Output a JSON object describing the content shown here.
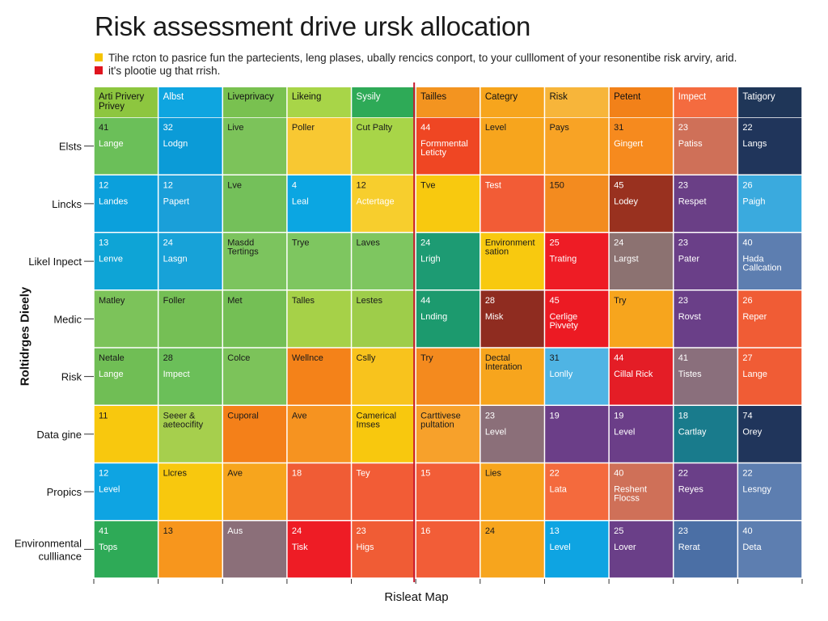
{
  "title": "Risk assessment drive ursk allocation",
  "legend": [
    {
      "color": "#f5c400",
      "text": "Tihe rcton to pasrice fun the partecients, leng plases, ubally rencics conport, to your cullloment of your resonentibe risk arviry, arid."
    },
    {
      "color": "#e0141e",
      "text": "it's plootie ug that rrish."
    }
  ],
  "chart_data": {
    "type": "heatmap",
    "xlabel": "Risleat Map",
    "ylabel": "Roltidrges Dieely",
    "columns": [
      "Arti Privery Privey",
      "Albst",
      "Liveprivacy",
      "Likeing",
      "Sysily",
      "Tailles",
      "Categry",
      "Risk",
      "Petent",
      "Impect",
      "Tatigory"
    ],
    "header_colors": [
      "#8dc63f",
      "#0ea5e0",
      "#79c150",
      "#a8d548",
      "#2eaa57",
      "#f39420",
      "#f7a51d",
      "#f7b53a",
      "#f28119",
      "#f46b3f",
      "#1f3658"
    ],
    "rows": [
      "Elsts",
      "Lincks",
      "Likel Inpect",
      "Medic",
      "Risk",
      "Data gine",
      "Propics",
      "Environmental cullliance"
    ],
    "divider_after_column": 4,
    "cells": [
      [
        {
          "t": "41",
          "s": "Lange",
          "c": "#6bbf59"
        },
        {
          "t": "32",
          "s": "Lodgn",
          "c": "#0b9bd7"
        },
        {
          "t": "Live",
          "s": "",
          "c": "#7cc35a"
        },
        {
          "t": "Poller",
          "s": "",
          "c": "#f8c832"
        },
        {
          "t": "Cut Palty",
          "s": "",
          "c": "#a8d548"
        },
        {
          "t": "44",
          "s": "Formmental Leticty",
          "c": "#ef4623"
        },
        {
          "t": "Level",
          "s": "",
          "c": "#f7a51d"
        },
        {
          "t": "Pays",
          "s": "",
          "c": "#f8a325"
        },
        {
          "t": "31",
          "s": "Gingert",
          "c": "#f68a1e"
        },
        {
          "t": "23",
          "s": "Patiss",
          "c": "#cf7058"
        },
        {
          "t": "22",
          "s": "Langs",
          "c": "#20355b"
        }
      ],
      [
        {
          "t": "12",
          "s": "Landes",
          "c": "#0ba0dc"
        },
        {
          "t": "12",
          "s": "Papert",
          "c": "#1a9fd9"
        },
        {
          "t": "Lve",
          "s": "",
          "c": "#74c05a"
        },
        {
          "t": "4",
          "s": "Leal",
          "c": "#0ba6e2"
        },
        {
          "t": "12",
          "s": "Actertage",
          "c": "#f7ce2d"
        },
        {
          "t": "Tve",
          "s": "",
          "c": "#f8c90f"
        },
        {
          "t": "Test",
          "s": "",
          "c": "#f25c36"
        },
        {
          "t": "150",
          "s": "",
          "c": "#f38b1f"
        },
        {
          "t": "45",
          "s": "Lodey",
          "c": "#99311f"
        },
        {
          "t": "23",
          "s": "Respet",
          "c": "#6a3f86"
        },
        {
          "t": "26",
          "s": "Paigh",
          "c": "#3aaade"
        }
      ],
      [
        {
          "t": "13",
          "s": "Lenve",
          "c": "#0ea4d6"
        },
        {
          "t": "24",
          "s": "Lasgn",
          "c": "#17a2d8"
        },
        {
          "t": "Masdd Tertings",
          "s": "",
          "c": "#7cc45e"
        },
        {
          "t": "Trye",
          "s": "",
          "c": "#7ec660"
        },
        {
          "t": "Laves",
          "s": "",
          "c": "#7ec660"
        },
        {
          "t": "24",
          "s": "Lrigh",
          "c": "#1d9b73"
        },
        {
          "t": "Environment sation",
          "s": "",
          "c": "#f8c90f"
        },
        {
          "t": "25",
          "s": "Trating",
          "c": "#ee1c25"
        },
        {
          "t": "24",
          "s": "Largst",
          "c": "#8c7271"
        },
        {
          "t": "23",
          "s": "Pater",
          "c": "#6a3f88"
        },
        {
          "t": "40",
          "s": "Hada Callcation",
          "c": "#5d7eb0"
        }
      ],
      [
        {
          "t": "Matley",
          "s": "",
          "c": "#7cc35a"
        },
        {
          "t": "Foller",
          "s": "",
          "c": "#75bf55"
        },
        {
          "t": "Met",
          "s": "",
          "c": "#74bf55"
        },
        {
          "t": "Talles",
          "s": "",
          "c": "#a6d148"
        },
        {
          "t": "Lestes",
          "s": "",
          "c": "#9ecd4a"
        },
        {
          "t": "44",
          "s": "Lnding",
          "c": "#1c9a6e"
        },
        {
          "t": "28",
          "s": "Misk",
          "c": "#8f2c20"
        },
        {
          "t": "45",
          "s": "Cerlige Pivvety",
          "c": "#ec1a23"
        },
        {
          "t": "Try",
          "s": "",
          "c": "#f7a51d"
        },
        {
          "t": "23",
          "s": "Rovst",
          "c": "#6a3f88"
        },
        {
          "t": "26",
          "s": "Reper",
          "c": "#f05c35"
        }
      ],
      [
        {
          "t": "Netale",
          "s": "Lange",
          "c": "#70be55"
        },
        {
          "t": "28",
          "s": "Impect",
          "c": "#6bbf59"
        },
        {
          "t": "Colce",
          "s": "",
          "c": "#7cc35a"
        },
        {
          "t": "Wellnce",
          "s": "",
          "c": "#f48219"
        },
        {
          "t": "Cslly",
          "s": "",
          "c": "#f8c31d"
        },
        {
          "t": "Try",
          "s": "",
          "c": "#f48a1e"
        },
        {
          "t": "Dectal Interation",
          "s": "",
          "c": "#f7a51d"
        },
        {
          "t": "31",
          "s": "Lonlly",
          "c": "#4fb4e4"
        },
        {
          "t": "44",
          "s": "Cillal Rick",
          "c": "#e41d26"
        },
        {
          "t": "41",
          "s": "Tistes",
          "c": "#8a6f7c"
        },
        {
          "t": "27",
          "s": "Lange",
          "c": "#f05c35"
        }
      ],
      [
        {
          "t": "11",
          "s": "",
          "c": "#f8c80e"
        },
        {
          "t": "Seeer & aeteocifity",
          "s": "",
          "c": "#a6cf4d"
        },
        {
          "t": "Cuporal",
          "s": "",
          "c": "#f48019"
        },
        {
          "t": "Ave",
          "s": "",
          "c": "#f69320"
        },
        {
          "t": "Camerical Imses",
          "s": "",
          "c": "#f8c80e"
        },
        {
          "t": "Carttivese pultation",
          "s": "",
          "c": "#f7a12b"
        },
        {
          "t": "23",
          "s": "Level",
          "c": "#8b6f79"
        },
        {
          "t": "19",
          "s": "",
          "c": "#6b3e88"
        },
        {
          "t": "19",
          "s": "Level",
          "c": "#6b3e88"
        },
        {
          "t": "18",
          "s": "Cartlay",
          "c": "#197b8c"
        },
        {
          "t": "74",
          "s": "Orey",
          "c": "#20355b"
        }
      ],
      [
        {
          "t": "12",
          "s": "Level",
          "c": "#0ea4e2"
        },
        {
          "t": "Llcres",
          "s": "",
          "c": "#f8c80e"
        },
        {
          "t": "Ave",
          "s": "",
          "c": "#f7a51d"
        },
        {
          "t": "18",
          "s": "",
          "c": "#f05c35"
        },
        {
          "t": "Tey",
          "s": "",
          "c": "#f25c36"
        },
        {
          "t": "15",
          "s": "",
          "c": "#f25d37"
        },
        {
          "t": "Lies",
          "s": "",
          "c": "#f7a51d"
        },
        {
          "t": "22",
          "s": "Lata",
          "c": "#f46a3d"
        },
        {
          "t": "40",
          "s": "Reshent Flocss",
          "c": "#cf7058"
        },
        {
          "t": "22",
          "s": "Reyes",
          "c": "#6a3f88"
        },
        {
          "t": "22",
          "s": "Lesngy",
          "c": "#5d7eb0"
        }
      ],
      [
        {
          "t": "41",
          "s": "Tops",
          "c": "#2eaa57"
        },
        {
          "t": "13",
          "s": "",
          "c": "#f7961d"
        },
        {
          "t": "Aus",
          "s": "",
          "c": "#8b6f79"
        },
        {
          "t": "24",
          "s": "Tisk",
          "c": "#ee1c25"
        },
        {
          "t": "23",
          "s": "Higs",
          "c": "#f05c35"
        },
        {
          "t": "16",
          "s": "",
          "c": "#f25d37"
        },
        {
          "t": "24",
          "s": "",
          "c": "#f7a51d"
        },
        {
          "t": "13",
          "s": "Level",
          "c": "#0ea4e2"
        },
        {
          "t": "25",
          "s": "Lover",
          "c": "#6a3f88"
        },
        {
          "t": "23",
          "s": "Rerat",
          "c": "#4b6fa5"
        },
        {
          "t": "40",
          "s": "Deta",
          "c": "#5d7eb0"
        }
      ]
    ],
    "divider_color": "#c8192c"
  }
}
